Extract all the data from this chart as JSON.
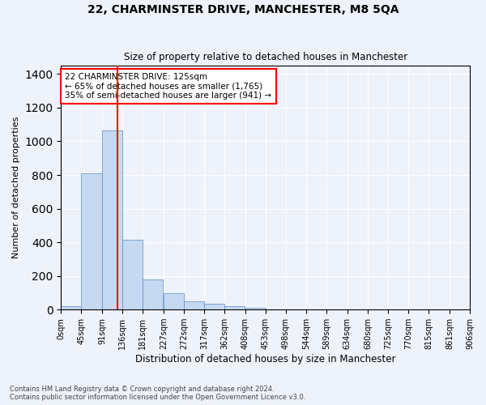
{
  "title": "22, CHARMINSTER DRIVE, MANCHESTER, M8 5QA",
  "subtitle": "Size of property relative to detached houses in Manchester",
  "xlabel": "Distribution of detached houses by size in Manchester",
  "ylabel": "Number of detached properties",
  "bar_color": "#c6d9f0",
  "bar_edge_color": "#5b8cc8",
  "bin_edges": [
    0,
    45,
    91,
    136,
    181,
    227,
    272,
    317,
    362,
    408,
    453,
    498,
    544,
    589,
    634,
    680,
    725,
    770,
    815,
    861,
    906
  ],
  "bin_labels": [
    "0sqm",
    "45sqm",
    "91sqm",
    "136sqm",
    "181sqm",
    "227sqm",
    "272sqm",
    "317sqm",
    "362sqm",
    "408sqm",
    "453sqm",
    "498sqm",
    "544sqm",
    "589sqm",
    "634sqm",
    "680sqm",
    "725sqm",
    "770sqm",
    "815sqm",
    "861sqm",
    "906sqm"
  ],
  "bar_heights": [
    20,
    810,
    1065,
    415,
    180,
    95,
    50,
    35,
    20,
    10,
    3,
    1,
    0,
    0,
    0,
    0,
    0,
    0,
    0,
    0
  ],
  "property_line_x": 125,
  "annotation_line1": "22 CHARMINSTER DRIVE: 125sqm",
  "annotation_line2": "← 65% of detached houses are smaller (1,765)",
  "annotation_line3": "35% of semi-detached houses are larger (941) →",
  "annotation_box_color": "white",
  "annotation_border_color": "red",
  "vline_color": "red",
  "ylim": [
    0,
    1450
  ],
  "yticks": [
    0,
    200,
    400,
    600,
    800,
    1000,
    1200,
    1400
  ],
  "footnote1": "Contains HM Land Registry data © Crown copyright and database right 2024.",
  "footnote2": "Contains public sector information licensed under the Open Government Licence v3.0.",
  "background_color": "#eef2fa",
  "grid_color": "white"
}
